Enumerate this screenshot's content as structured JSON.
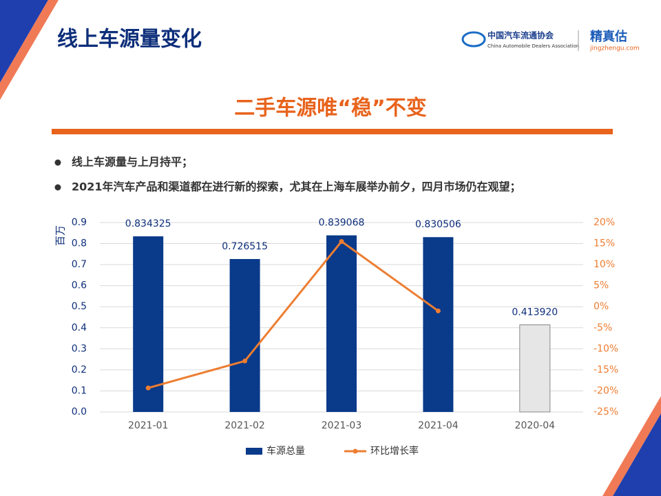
{
  "header": {
    "title": "线上车源量变化",
    "logo_cn": "中国汽车流通协会",
    "logo_en": "China Automobile Dealers Association",
    "brand": "精真估",
    "brand_url": "jingzhengu.com"
  },
  "subtitle": "二手车源唯“稳”不变",
  "bullets": [
    "线上车源量与上月持平；",
    "2021年汽车产品和渠道都在进行新的探索，尤其在上海车展举办前夕，四月市场仍在观望；"
  ],
  "chart_data": {
    "type": "bar",
    "categories": [
      "2021-01",
      "2021-02",
      "2021-03",
      "2021-04",
      "2020-04"
    ],
    "ylabel": "百万",
    "ylim": [
      0,
      0.9
    ],
    "yticks": [
      {
        "value": 0,
        "label": "0.0"
      },
      0.1,
      0.2,
      0.3,
      0.4,
      0.5,
      0.6,
      0.7,
      0.8,
      0.9
    ],
    "y2lim": [
      -25,
      20
    ],
    "y2ticks": [
      {
        "value": -25,
        "label": "-25%"
      },
      {
        "value": -20,
        "label": "-20%"
      },
      {
        "value": -15,
        "label": "-15%"
      },
      {
        "value": -10,
        "label": "-10%"
      },
      {
        "value": -5,
        "label": "-5%"
      },
      {
        "value": 0,
        "label": "0%"
      },
      {
        "value": 5,
        "label": "5%"
      },
      {
        "value": 10,
        "label": "10%"
      },
      {
        "value": 15,
        "label": "15%"
      },
      {
        "value": 20,
        "label": "20%"
      }
    ],
    "grid": true,
    "legend": "bottom",
    "series": [
      {
        "name": "车源总量",
        "type": "bar",
        "color": "#0a3a8a",
        "colors": [
          "#0a3a8a",
          "#0a3a8a",
          "#0a3a8a",
          "#0a3a8a",
          "#e6e6e6"
        ],
        "values": [
          0.834325,
          0.726515,
          0.839068,
          0.830506,
          0.41392
        ],
        "value_labels": [
          "0.834325",
          "0.726515",
          "0.839068",
          "0.830506",
          "0.413920"
        ]
      },
      {
        "name": "环比增长率",
        "type": "line",
        "axis": "y2",
        "color": "#ed7d31",
        "values": [
          -19.3,
          -12.9,
          15.5,
          -1.0,
          null
        ]
      }
    ]
  }
}
